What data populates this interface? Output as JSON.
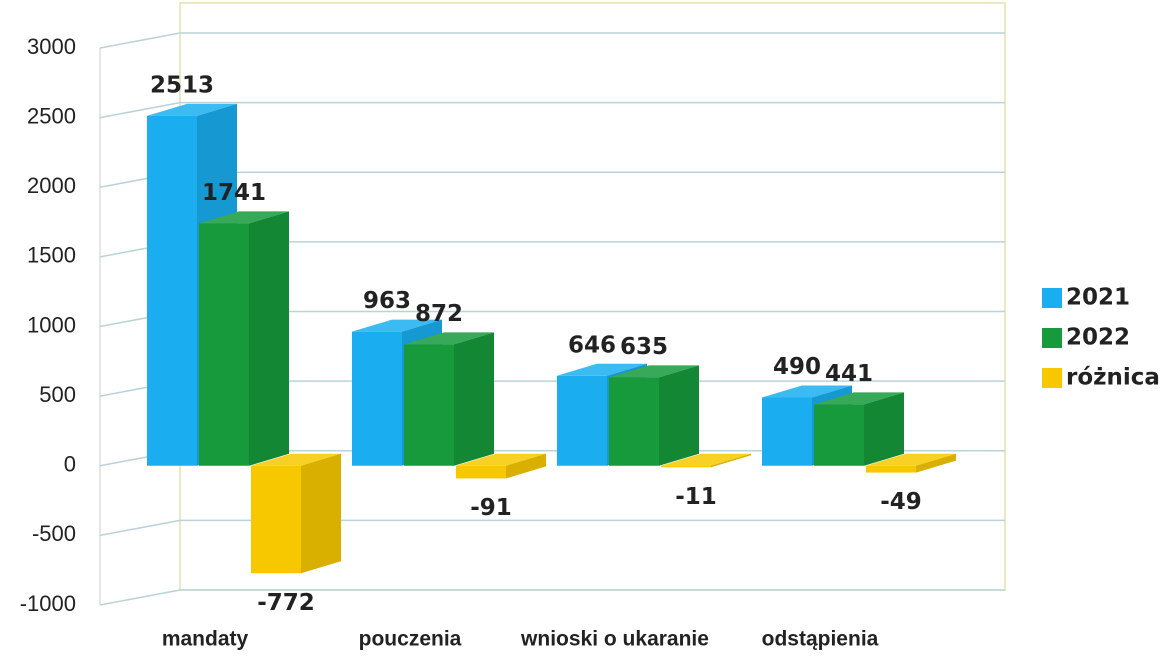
{
  "chart_data": {
    "type": "bar3d",
    "categories": [
      "mandaty",
      "pouczenia",
      "wnioski o ukaranie",
      "odstąpienia"
    ],
    "series": [
      {
        "name": "2021",
        "color": "#1aaef0",
        "values": [
          2513,
          963,
          646,
          490
        ]
      },
      {
        "name": "2022",
        "color": "#169a3c",
        "values": [
          1741,
          872,
          635,
          441
        ]
      },
      {
        "name": "różnica",
        "color": "#f7c800",
        "values": [
          -772,
          -91,
          -11,
          -49
        ]
      }
    ],
    "ylim": [
      -1000,
      3000
    ],
    "yticks": [
      -1000,
      -500,
      0,
      500,
      1000,
      1500,
      2000,
      2500,
      3000
    ],
    "grid": true,
    "legend": "right"
  }
}
